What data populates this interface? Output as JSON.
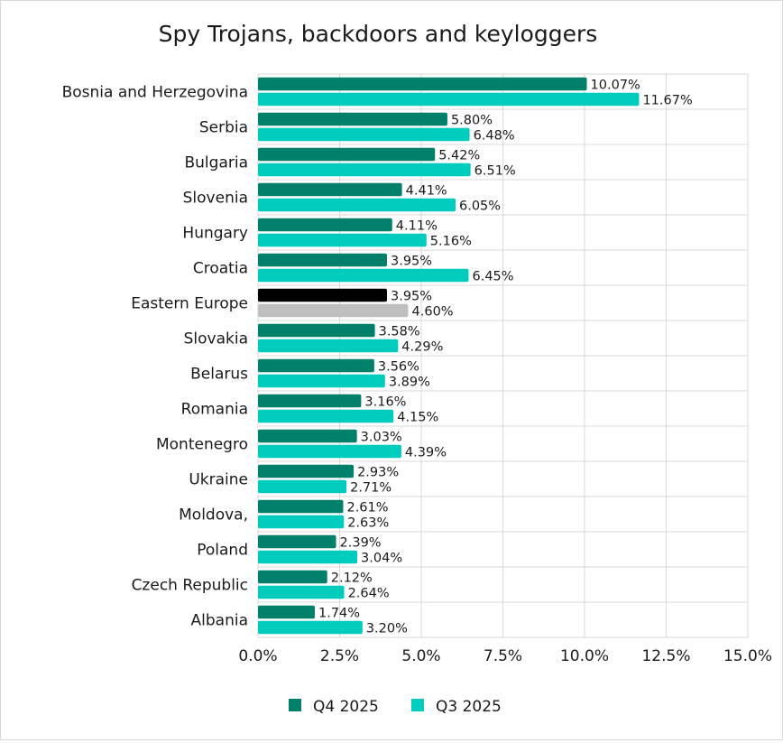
{
  "chart_data": {
    "type": "bar",
    "orientation": "horizontal",
    "title": "Spy Trojans, backdoors and keyloggers",
    "xlabel": "",
    "ylabel": "",
    "xlim": [
      0,
      15
    ],
    "x_ticks": [
      "0.0%",
      "2.5%",
      "5.0%",
      "7.5%",
      "10.0%",
      "12.5%",
      "15.0%"
    ],
    "x_tick_values": [
      0,
      2.5,
      5,
      7.5,
      10,
      12.5,
      15
    ],
    "grid": true,
    "legend_position": "bottom",
    "categories": [
      "Bosnia and Herzegovina",
      "Serbia",
      "Bulgaria",
      "Slovenia",
      "Hungary",
      "Croatia",
      "Eastern Europe",
      "Slovakia",
      "Belarus",
      "Romania",
      "Montenegro",
      "Ukraine",
      "Moldova,",
      "Poland",
      "Czech Republic",
      "Albania"
    ],
    "highlight_category": "Eastern Europe",
    "series": [
      {
        "name": "Q4 2025",
        "color": "#00806b",
        "highlight_color": "#000000",
        "values": [
          10.07,
          5.8,
          5.42,
          4.41,
          4.11,
          3.95,
          3.95,
          3.58,
          3.56,
          3.16,
          3.03,
          2.93,
          2.61,
          2.39,
          2.12,
          1.74
        ],
        "labels": [
          "10.07%",
          "5.80%",
          "5.42%",
          "4.41%",
          "4.11%",
          "3.95%",
          "3.95%",
          "3.58%",
          "3.56%",
          "3.16%",
          "3.03%",
          "2.93%",
          "2.61%",
          "2.39%",
          "2.12%",
          "1.74%"
        ]
      },
      {
        "name": "Q3 2025",
        "color": "#00ccbe",
        "highlight_color": "#bfbfbf",
        "values": [
          11.67,
          6.48,
          6.51,
          6.05,
          5.16,
          6.45,
          4.6,
          4.29,
          3.89,
          4.15,
          4.39,
          2.71,
          2.63,
          3.04,
          2.64,
          3.2
        ],
        "labels": [
          "11.67%",
          "6.48%",
          "6.51%",
          "6.05%",
          "5.16%",
          "6.45%",
          "4.60%",
          "4.29%",
          "3.89%",
          "4.15%",
          "4.39%",
          "2.71%",
          "2.63%",
          "3.04%",
          "2.64%",
          "3.20%"
        ]
      }
    ]
  }
}
